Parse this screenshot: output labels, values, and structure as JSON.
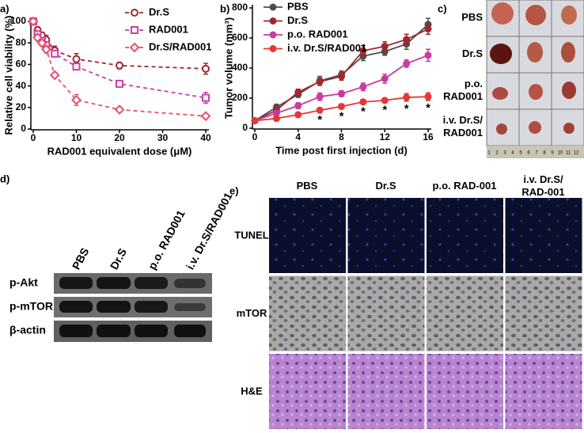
{
  "chart_data": [
    {
      "type": "line",
      "panel": "a)",
      "xlabel": "RAD001 equivalent dose (μM)",
      "ylabel": "Relative cell viability (%)",
      "x": [
        0,
        1,
        2,
        3,
        5,
        10,
        20,
        40
      ],
      "xlim": [
        0,
        40
      ],
      "ylim": [
        0,
        100
      ],
      "xticks": [
        0,
        10,
        20,
        30,
        40
      ],
      "yticks": [
        0,
        20,
        40,
        60,
        80,
        100
      ],
      "line_style": "dashed",
      "legend": "upper right",
      "series": [
        {
          "name": "Dr.S",
          "color": "#a0282d",
          "marker": "circle",
          "filled": false,
          "values": [
            100,
            92,
            87,
            83,
            73,
            65,
            59,
            56
          ],
          "errors": [
            0,
            3,
            3,
            4,
            4,
            5,
            3,
            5
          ]
        },
        {
          "name": "RAD001",
          "color": "#cc3fa8",
          "marker": "square",
          "filled": false,
          "values": [
            100,
            88,
            82,
            78,
            70,
            58,
            42,
            29
          ],
          "errors": [
            0,
            3,
            3,
            3,
            3,
            3,
            2,
            5
          ]
        },
        {
          "name": "Dr.S/RAD001",
          "color": "#e8506a",
          "marker": "diamond",
          "filled": false,
          "values": [
            100,
            85,
            80,
            74,
            50,
            27,
            18,
            12
          ],
          "errors": [
            0,
            3,
            3,
            3,
            2,
            5,
            1,
            1
          ]
        }
      ]
    },
    {
      "type": "line",
      "panel": "b)",
      "xlabel": "Time post first injection (d)",
      "ylabel": "Tumor volume (mm³)",
      "x": [
        0,
        2,
        4,
        6,
        8,
        10,
        12,
        14,
        16
      ],
      "xlim": [
        0,
        16
      ],
      "ylim": [
        0,
        800
      ],
      "xticks": [
        0,
        4,
        8,
        12,
        16
      ],
      "yticks": [
        0,
        200,
        400,
        600,
        800
      ],
      "line_style": "solid",
      "legend": "upper left",
      "series": [
        {
          "name": "PBS",
          "color": "#4d4d4d",
          "marker": "circle",
          "filled": true,
          "values": [
            50,
            140,
            225,
            315,
            355,
            480,
            510,
            560,
            690
          ],
          "errors": [
            10,
            20,
            20,
            30,
            25,
            30,
            25,
            35,
            40
          ]
        },
        {
          "name": "Dr.S",
          "color": "#a0282d",
          "marker": "circle",
          "filled": true,
          "values": [
            50,
            120,
            240,
            310,
            345,
            515,
            545,
            590,
            660
          ],
          "errors": [
            10,
            20,
            20,
            25,
            25,
            35,
            30,
            35,
            35
          ]
        },
        {
          "name": "p.o. RAD001",
          "color": "#c83ca0",
          "marker": "circle",
          "filled": true,
          "values": [
            50,
            100,
            150,
            210,
            230,
            275,
            330,
            430,
            485
          ],
          "errors": [
            10,
            15,
            20,
            25,
            20,
            25,
            30,
            25,
            40
          ]
        },
        {
          "name": "i.v. Dr.S/RAD001",
          "color": "#e83535",
          "marker": "circle",
          "filled": true,
          "values": [
            50,
            65,
            90,
            120,
            145,
            175,
            185,
            205,
            210
          ],
          "errors": [
            10,
            10,
            15,
            15,
            15,
            15,
            15,
            25,
            25
          ]
        }
      ],
      "annotations": {
        "text": [
          "*",
          "*",
          "*",
          "*",
          "*",
          "*"
        ],
        "x": [
          6,
          8,
          10,
          12,
          14,
          16
        ],
        "series": 3,
        "color": "#c83ca0"
      }
    }
  ],
  "photo_panel": {
    "label": "c)",
    "rows": [
      [
        "PBS"
      ],
      [
        "Dr.S"
      ],
      [
        "p.o.",
        "RAD001"
      ],
      [
        "i.v. Dr.S/",
        "RAD001"
      ]
    ],
    "row_colors": [
      "#000000",
      "#a0282d",
      "#c83ca0",
      "#e83535"
    ],
    "ruler": [
      "1",
      "2",
      "3",
      "4",
      "5",
      "6",
      "7",
      "8",
      "9",
      "10",
      "11",
      "12"
    ]
  },
  "blot_panel": {
    "label": "d)",
    "lanes": [
      "PBS",
      "Dr.S",
      "p.o. RAD001",
      "i.v. Dr.S/RAD001"
    ],
    "lane_colors": [
      "#000000",
      "#a0282d",
      "#c83ca0",
      "#e83535"
    ],
    "rows": [
      "p-Akt",
      "p-mTOR",
      "β-actin"
    ]
  },
  "histology_panel": {
    "label": "e)",
    "columns": [
      [
        "PBS"
      ],
      [
        "Dr.S"
      ],
      [
        "p.o. RAD-001"
      ],
      [
        "i.v. Dr.S/",
        "RAD-001"
      ]
    ],
    "column_colors": [
      "#000000",
      "#a0282d",
      "#c83ca0",
      "#e83535"
    ],
    "rows": [
      "TUNEL",
      "mTOR",
      "H&E"
    ]
  }
}
